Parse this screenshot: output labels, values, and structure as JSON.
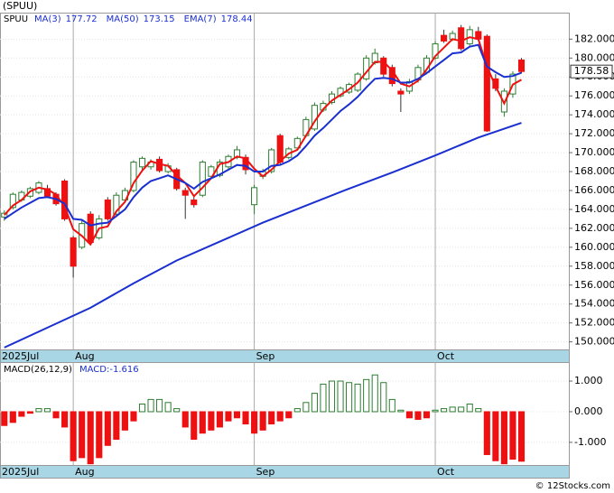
{
  "chart_data": {
    "type": "candlestick",
    "title": "(SPUU)",
    "ticker": "SPUU",
    "xlim": [
      -0.5,
      65.5
    ],
    "xticks": [
      {
        "value": 0,
        "label": "2025Jul"
      },
      {
        "value": 8,
        "label": "Aug"
      },
      {
        "value": 29,
        "label": "Sep"
      },
      {
        "value": 50,
        "label": "Oct"
      }
    ],
    "ylim": [
      149.2,
      184.8
    ],
    "yticks": [
      {
        "value": 150,
        "label": "150.000"
      },
      {
        "value": 152,
        "label": "152.000"
      },
      {
        "value": 154,
        "label": "154.000"
      },
      {
        "value": 156,
        "label": "156.000"
      },
      {
        "value": 158,
        "label": "158.000"
      },
      {
        "value": 160,
        "label": "160.000"
      },
      {
        "value": 162,
        "label": "162.000"
      },
      {
        "value": 164,
        "label": "164.000"
      },
      {
        "value": 166,
        "label": "166.000"
      },
      {
        "value": 168,
        "label": "168.000"
      },
      {
        "value": 170,
        "label": "170.000"
      },
      {
        "value": 172,
        "label": "172.000"
      },
      {
        "value": 174,
        "label": "174.000"
      },
      {
        "value": 176,
        "label": "176.000"
      },
      {
        "value": 178,
        "label": "178.000"
      },
      {
        "value": 180,
        "label": "180.000"
      },
      {
        "value": 182,
        "label": "182.000"
      }
    ],
    "up_color": "#2e7d32",
    "down_color": "#ee1111",
    "open": [
      163.2,
      164.2,
      165.0,
      165.4,
      165.8,
      166.2,
      165.6,
      167.0,
      161.0,
      160.0,
      163.5,
      161.0,
      165.0,
      163.5,
      165.0,
      166.0,
      168.5,
      168.5,
      169.3,
      168.0,
      168.2,
      166.0,
      165.0,
      165.5,
      167.5,
      167.6,
      168.5,
      169.5,
      169.5,
      164.5,
      167.5,
      168.0,
      171.8,
      169.5,
      170.5,
      171.8,
      172.5,
      174.5,
      175.3,
      176.0,
      176.4,
      176.6,
      177.8,
      179.5,
      180.0,
      179.0,
      176.5,
      176.5,
      177.7,
      178.5,
      180.0,
      182.4,
      182.0,
      183.2,
      181.5,
      182.8,
      182.3,
      177.8,
      174.3,
      176.2,
      179.8
    ],
    "high": [
      163.9,
      165.8,
      166.0,
      166.4,
      167.0,
      166.6,
      165.8,
      167.2,
      161.2,
      162.8,
      163.8,
      163.4,
      165.3,
      165.8,
      166.3,
      169.2,
      169.6,
      169.3,
      169.6,
      168.9,
      168.4,
      166.3,
      165.4,
      169.2,
      168.7,
      169.3,
      169.8,
      170.7,
      169.8,
      166.6,
      168.3,
      170.5,
      172.0,
      170.6,
      171.7,
      173.8,
      175.3,
      175.5,
      176.5,
      177.0,
      177.4,
      178.5,
      180.3,
      181.0,
      180.2,
      179.3,
      176.8,
      177.8,
      179.3,
      180.3,
      181.8,
      183.0,
      182.9,
      183.5,
      183.4,
      183.3,
      182.5,
      178.3,
      176.8,
      178.6,
      180.0
    ],
    "low": [
      162.8,
      164.0,
      164.8,
      165.2,
      165.6,
      165.2,
      164.4,
      162.8,
      156.8,
      159.8,
      160.2,
      160.8,
      162.8,
      163.2,
      164.8,
      165.8,
      168.2,
      168.2,
      167.9,
      167.8,
      166.0,
      163.0,
      164.2,
      165.3,
      167.2,
      167.4,
      168.3,
      169.3,
      167.7,
      163.5,
      167.2,
      167.8,
      168.8,
      169.3,
      170.3,
      171.6,
      172.3,
      174.3,
      175.1,
      175.8,
      176.2,
      176.4,
      177.6,
      179.3,
      178.0,
      177.0,
      174.3,
      176.2,
      177.4,
      178.3,
      179.8,
      181.6,
      181.8,
      180.8,
      181.3,
      181.8,
      172.2,
      176.5,
      173.8,
      175.8,
      178.4
    ],
    "close": [
      163.6,
      165.6,
      165.8,
      166.2,
      166.8,
      165.4,
      164.6,
      163.0,
      158.0,
      162.5,
      160.5,
      163.0,
      163.0,
      165.5,
      166.0,
      169.0,
      169.4,
      169.0,
      168.1,
      168.6,
      166.2,
      165.5,
      164.5,
      169.0,
      168.5,
      169.0,
      169.6,
      170.3,
      168.2,
      166.3,
      168.0,
      170.3,
      169.0,
      170.4,
      171.5,
      173.5,
      175.0,
      175.2,
      176.2,
      176.8,
      177.2,
      178.3,
      180.0,
      180.5,
      178.3,
      177.3,
      176.2,
      177.5,
      179.0,
      180.0,
      181.5,
      181.8,
      182.6,
      181.0,
      183.0,
      182.0,
      172.3,
      176.8,
      176.5,
      178.3,
      178.58
    ],
    "last_price": {
      "value": 178.58,
      "label": "178.58"
    },
    "series": [
      {
        "name": "MA(3)",
        "last": 177.72,
        "color": "#ee1111",
        "values": [
          163.4,
          164.4,
          165.0,
          165.9,
          166.3,
          166.1,
          165.6,
          164.3,
          161.9,
          161.2,
          160.3,
          162.0,
          162.2,
          163.8,
          164.8,
          166.8,
          168.1,
          169.1,
          168.8,
          168.6,
          167.6,
          166.8,
          165.4,
          166.3,
          167.3,
          168.8,
          169.0,
          169.6,
          169.4,
          168.3,
          167.5,
          168.2,
          169.1,
          169.9,
          170.3,
          171.8,
          173.3,
          174.6,
          175.5,
          176.1,
          176.7,
          177.4,
          178.5,
          179.6,
          179.6,
          178.7,
          177.3,
          177.0,
          177.6,
          178.8,
          180.2,
          181.1,
          182.0,
          181.8,
          182.2,
          182.0,
          179.1,
          177.0,
          175.2,
          177.2,
          177.72
        ]
      },
      {
        "name": "MA(50)",
        "last": 173.15,
        "color": "#1a2fd0",
        "x": [
          0,
          5,
          10,
          15,
          20,
          25,
          30,
          35,
          40,
          45,
          50,
          55,
          60
        ],
        "values": [
          149.4,
          151.5,
          153.6,
          156.2,
          158.6,
          160.6,
          162.6,
          164.4,
          166.2,
          167.9,
          169.7,
          171.6,
          173.15
        ]
      },
      {
        "name": "EMA(7)",
        "last": 178.44,
        "color": "#1a2fd0",
        "values": [
          163.0,
          163.6,
          164.2,
          164.7,
          165.2,
          165.3,
          165.1,
          164.6,
          163.0,
          162.9,
          162.3,
          162.5,
          162.6,
          163.3,
          164.0,
          165.3,
          166.3,
          167.0,
          167.3,
          167.6,
          167.2,
          166.8,
          166.2,
          166.9,
          167.3,
          167.7,
          168.2,
          168.7,
          168.6,
          168.0,
          168.0,
          168.6,
          168.7,
          169.1,
          169.7,
          170.7,
          171.8,
          172.6,
          173.5,
          174.4,
          175.1,
          175.9,
          176.9,
          177.8,
          177.9,
          177.8,
          177.4,
          177.4,
          177.8,
          178.4,
          179.1,
          179.8,
          180.5,
          180.6,
          181.2,
          181.4,
          179.1,
          178.5,
          178.0,
          178.1,
          178.44
        ]
      }
    ],
    "macd": {
      "name": "MACD(26,12,9)",
      "last": {
        "value": -1.616,
        "label": "MACD:-1.616"
      },
      "ylim": [
        -1.74,
        1.62
      ],
      "yticks": [
        {
          "value": 1,
          "label": "1.000"
        },
        {
          "value": 0,
          "label": "0.000"
        },
        {
          "value": -1,
          "label": "-1.000"
        }
      ],
      "values": [
        -0.45,
        -0.35,
        -0.15,
        -0.05,
        0.1,
        0.1,
        -0.2,
        -0.5,
        -1.6,
        -1.5,
        -1.7,
        -1.5,
        -1.1,
        -0.9,
        -0.6,
        -0.3,
        0.25,
        0.4,
        0.4,
        0.3,
        0.1,
        -0.5,
        -0.9,
        -0.7,
        -0.6,
        -0.5,
        -0.3,
        -0.2,
        -0.4,
        -0.7,
        -0.6,
        -0.4,
        -0.3,
        -0.2,
        0.1,
        0.3,
        0.6,
        0.9,
        1.0,
        1.0,
        0.95,
        0.9,
        1.05,
        1.2,
        0.95,
        0.4,
        0.05,
        -0.2,
        -0.25,
        -0.2,
        0.05,
        0.1,
        0.15,
        0.15,
        0.25,
        0.1,
        -1.4,
        -1.6,
        -1.7,
        -1.55,
        -1.616
      ]
    },
    "credit": "© 12Stocks.com"
  }
}
